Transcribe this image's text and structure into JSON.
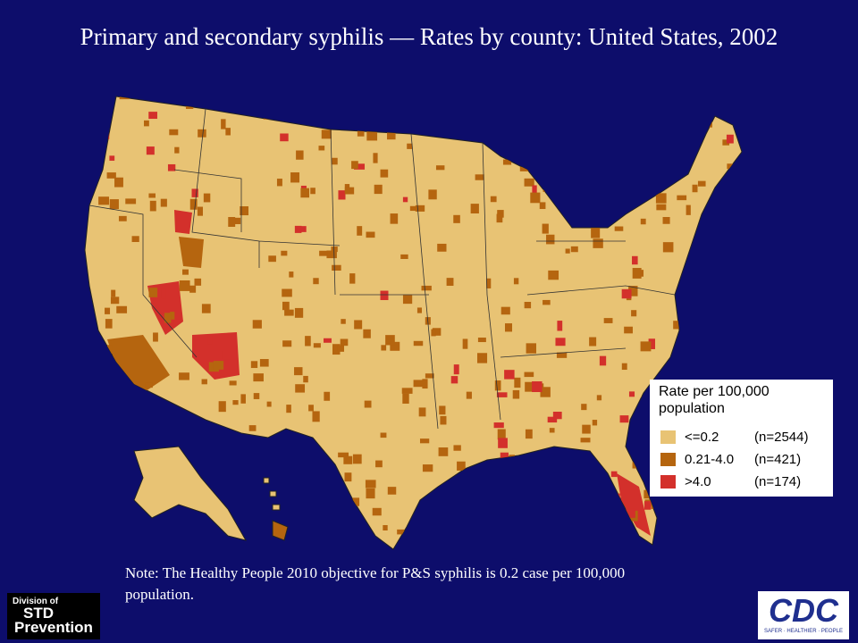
{
  "title": "Primary and secondary syphilis — Rates by county: United States, 2002",
  "legend": {
    "title": "Rate per 100,000 population",
    "items": [
      {
        "label": "<=0.2",
        "count": "(n=2544)",
        "color": "#e8c374"
      },
      {
        "label": "0.21-4.0",
        "count": "(n=421)",
        "color": "#b5650f"
      },
      {
        "label": ">4.0",
        "count": "(n=174)",
        "color": "#d3302b"
      }
    ]
  },
  "note": "Note: The Healthy People 2010 objective for P&S syphilis is 0.2 case per 100,000 population.",
  "logos": {
    "division": {
      "line1": "Division of",
      "line2": "STD",
      "line3": "Prevention"
    },
    "cdc": {
      "name": "CDC",
      "tagline": "SAFER · HEALTHIER · PEOPLE"
    }
  }
}
